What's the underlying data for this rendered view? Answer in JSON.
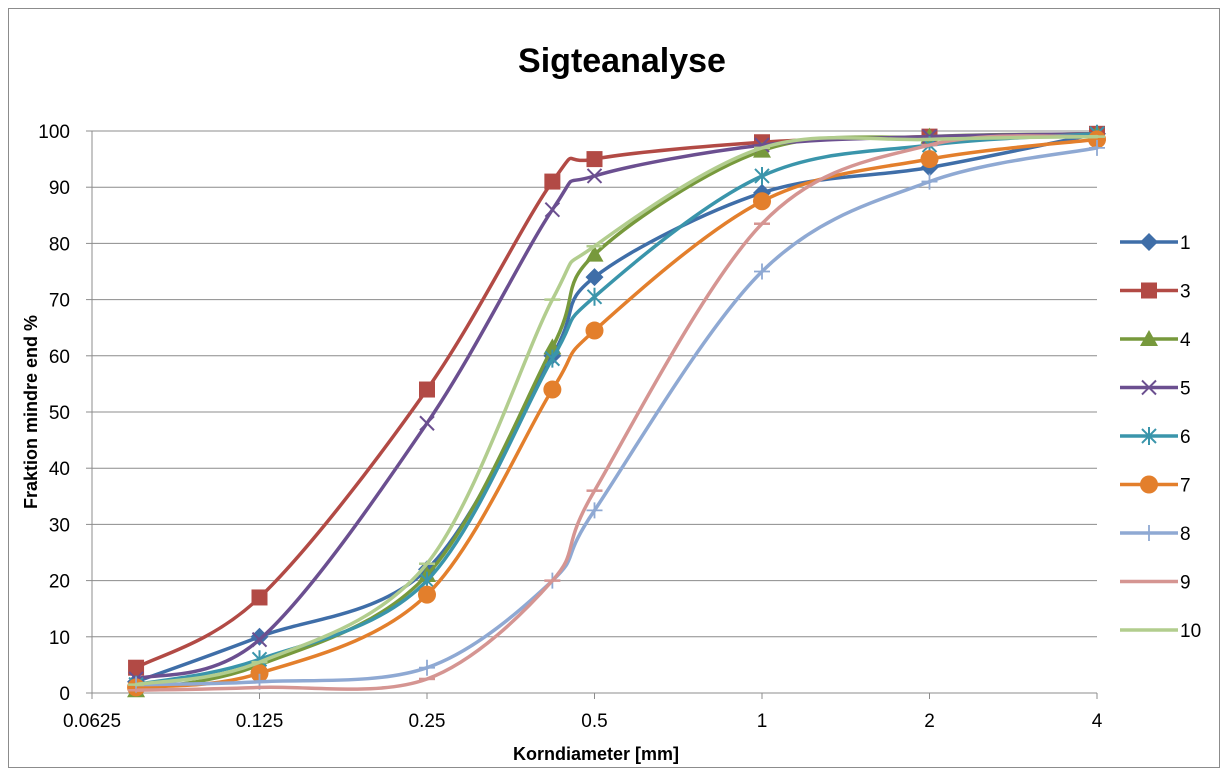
{
  "chart_data": {
    "type": "line",
    "title": "Sigteanalyse",
    "xlabel": "Korndiameter [mm]",
    "ylabel": "Fraktion mindre end %",
    "x_scale": "log2",
    "xlim": [
      0.0625,
      4
    ],
    "ylim": [
      0,
      100
    ],
    "x_ticks": [
      "0.0625",
      "0.125",
      "0.25",
      "0.5",
      "1",
      "2",
      "4"
    ],
    "y_ticks": [
      "0",
      "10",
      "20",
      "30",
      "40",
      "50",
      "60",
      "70",
      "80",
      "90",
      "100"
    ],
    "grid": "horizontal",
    "legend_position": "right",
    "series": [
      {
        "name": "1",
        "color": "#3f6ea8",
        "marker": "diamond",
        "x": [
          0.075,
          0.125,
          0.25,
          0.42,
          0.5,
          1,
          2,
          4
        ],
        "y": [
          2,
          10,
          22,
          60,
          74,
          89,
          93.5,
          99.5
        ]
      },
      {
        "name": "3",
        "color": "#b24a45",
        "marker": "square",
        "x": [
          0.075,
          0.125,
          0.25,
          0.42,
          0.5,
          1,
          2,
          4
        ],
        "y": [
          4.5,
          17,
          54,
          91,
          95,
          98,
          99,
          99.5
        ]
      },
      {
        "name": "4",
        "color": "#77993c",
        "marker": "triangle",
        "x": [
          0.075,
          0.125,
          0.25,
          0.42,
          0.5,
          1,
          2,
          4
        ],
        "y": [
          0.5,
          5,
          21,
          61.5,
          78,
          96.5,
          99,
          99.5
        ]
      },
      {
        "name": "5",
        "color": "#6b4f90",
        "marker": "x",
        "x": [
          0.075,
          0.125,
          0.25,
          0.42,
          0.5,
          1,
          2,
          4
        ],
        "y": [
          2.5,
          9.5,
          48,
          86,
          92,
          97.5,
          99,
          99.5
        ]
      },
      {
        "name": "6",
        "color": "#3a95ab",
        "marker": "star",
        "x": [
          0.075,
          0.125,
          0.25,
          0.42,
          0.5,
          1,
          2,
          4
        ],
        "y": [
          1.5,
          6,
          20,
          59.5,
          70.5,
          92,
          97.5,
          99.5
        ]
      },
      {
        "name": "7",
        "color": "#e37f2c",
        "marker": "circle",
        "x": [
          0.075,
          0.125,
          0.25,
          0.42,
          0.5,
          1,
          2,
          4
        ],
        "y": [
          1,
          3.5,
          17.5,
          54,
          64.5,
          87.5,
          95,
          98.5
        ]
      },
      {
        "name": "8",
        "color": "#8fa9d3",
        "marker": "plus",
        "x": [
          0.075,
          0.125,
          0.25,
          0.42,
          0.5,
          1,
          2,
          4
        ],
        "y": [
          1.5,
          2,
          4.5,
          20,
          32.5,
          75,
          91,
          97
        ]
      },
      {
        "name": "9",
        "color": "#d59592",
        "marker": "dash",
        "x": [
          0.075,
          0.125,
          0.25,
          0.42,
          0.5,
          1,
          2,
          4
        ],
        "y": [
          0.5,
          1,
          2.5,
          20,
          36,
          83.5,
          97.5,
          99
        ]
      },
      {
        "name": "10",
        "color": "#b2cd8e",
        "marker": "dash",
        "x": [
          0.075,
          0.125,
          0.25,
          0.42,
          0.5,
          1,
          2,
          4
        ],
        "y": [
          1.5,
          5.5,
          23,
          70,
          79.5,
          97,
          98.5,
          99
        ]
      }
    ]
  }
}
